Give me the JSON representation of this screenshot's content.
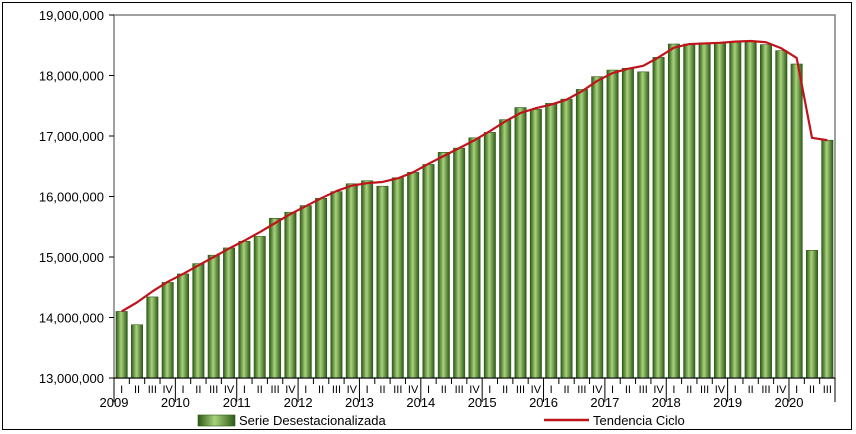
{
  "chart_data": {
    "type": "bar",
    "title": "",
    "xlabel": "",
    "ylabel": "",
    "ylim": [
      13000000,
      19000000
    ],
    "yticks": [
      13000000,
      14000000,
      15000000,
      16000000,
      17000000,
      18000000,
      19000000
    ],
    "ytick_labels": [
      "13,000,000",
      "14,000,000",
      "15,000,000",
      "16,000,000",
      "17,000,000",
      "18,000,000",
      "19,000,000"
    ],
    "grid": false,
    "legend_position": "bottom",
    "colors": {
      "bar_fill": "#4f8a2c",
      "bar_light": "#a9d27d",
      "bar_dark": "#2d5a16",
      "trend_line": "#c0141c",
      "axis": "#808080"
    },
    "quarter_labels": [
      "I",
      "II",
      "III",
      "IV",
      "I",
      "II",
      "III",
      "IV",
      "I",
      "II",
      "III",
      "IV",
      "I",
      "II",
      "III",
      "IV",
      "I",
      "II",
      "III",
      "IV",
      "I",
      "II",
      "III",
      "IV",
      "I",
      "II",
      "III",
      "IV",
      "I",
      "II",
      "III",
      "IV",
      "I",
      "II",
      "III",
      "IV",
      "I",
      "II",
      "III",
      "IV",
      "I",
      "II",
      "III",
      "IV",
      "I",
      "II",
      "III"
    ],
    "years": [
      "2009",
      "2010",
      "2011",
      "2012",
      "2013",
      "2014",
      "2015",
      "2016",
      "2017",
      "2018",
      "2019",
      "2020"
    ],
    "series": [
      {
        "name": "Serie Desestacionalizada",
        "type": "bar",
        "values": [
          14100000,
          13880000,
          14340000,
          14580000,
          14720000,
          14890000,
          15030000,
          15150000,
          15260000,
          15340000,
          15640000,
          15740000,
          15850000,
          15970000,
          16080000,
          16210000,
          16260000,
          16170000,
          16310000,
          16400000,
          16530000,
          16730000,
          16800000,
          16970000,
          17060000,
          17270000,
          17470000,
          17440000,
          17540000,
          17610000,
          17770000,
          17980000,
          18090000,
          18120000,
          18060000,
          18300000,
          18520000,
          18520000,
          18540000,
          18540000,
          18550000,
          18560000,
          18510000,
          18410000,
          18190000,
          15110000,
          16930000
        ]
      },
      {
        "name": "Tendencia Ciclo",
        "type": "line",
        "values": [
          14100000,
          14250000,
          14430000,
          14590000,
          14720000,
          14860000,
          15000000,
          15140000,
          15270000,
          15410000,
          15560000,
          15710000,
          15840000,
          15970000,
          16090000,
          16180000,
          16220000,
          16240000,
          16300000,
          16400000,
          16540000,
          16670000,
          16800000,
          16930000,
          17080000,
          17240000,
          17380000,
          17460000,
          17520000,
          17600000,
          17740000,
          17910000,
          18040000,
          18110000,
          18160000,
          18300000,
          18460000,
          18520000,
          18530000,
          18540000,
          18560000,
          18570000,
          18550000,
          18450000,
          18290000,
          16970000,
          16930000
        ]
      }
    ]
  }
}
